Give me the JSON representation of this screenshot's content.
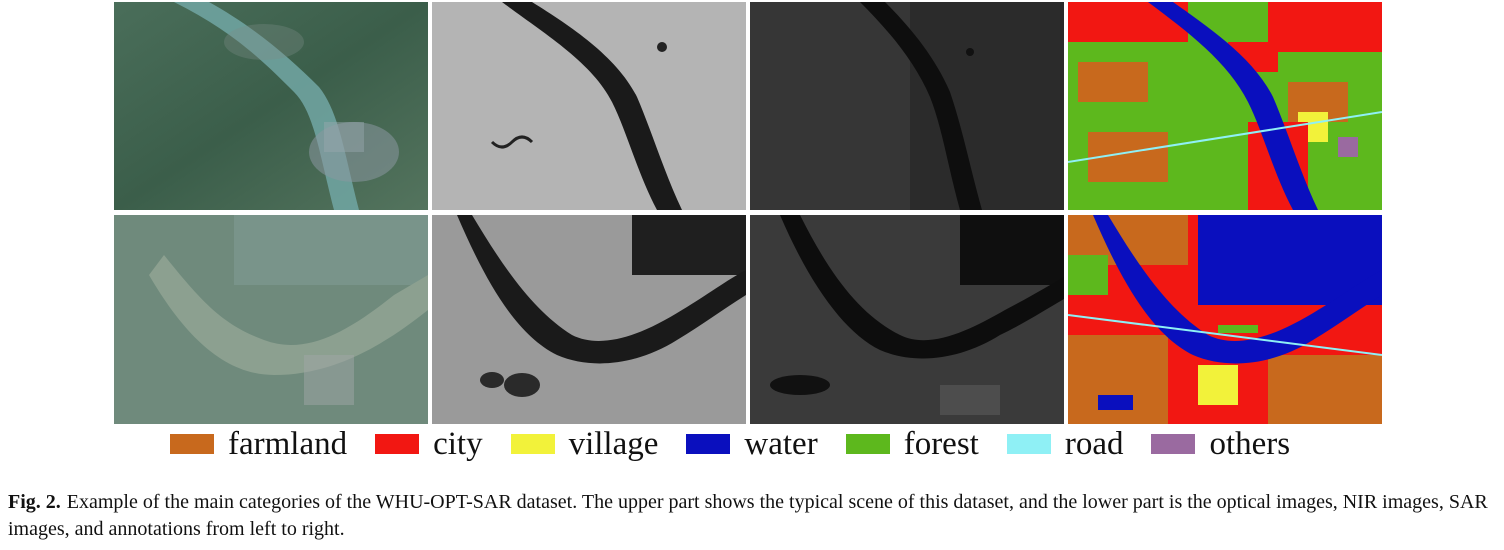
{
  "figure": {
    "legend": [
      {
        "label": "farmland",
        "color": "#c8691d"
      },
      {
        "label": "city",
        "color": "#f21712"
      },
      {
        "label": "village",
        "color": "#f2f23a"
      },
      {
        "label": "water",
        "color": "#0a0fbe"
      },
      {
        "label": "forest",
        "color": "#5db81d"
      },
      {
        "label": "road",
        "color": "#8ff0f5"
      },
      {
        "label": "others",
        "color": "#9a6aa0"
      }
    ],
    "caption": {
      "label": "Fig. 2.",
      "text": "Example of the main categories of the WHU-OPT-SAR dataset. The upper part shows the typical scene of this dataset, and the lower part is the optical images, NIR images, SAR images, and annotations from left to right."
    }
  }
}
